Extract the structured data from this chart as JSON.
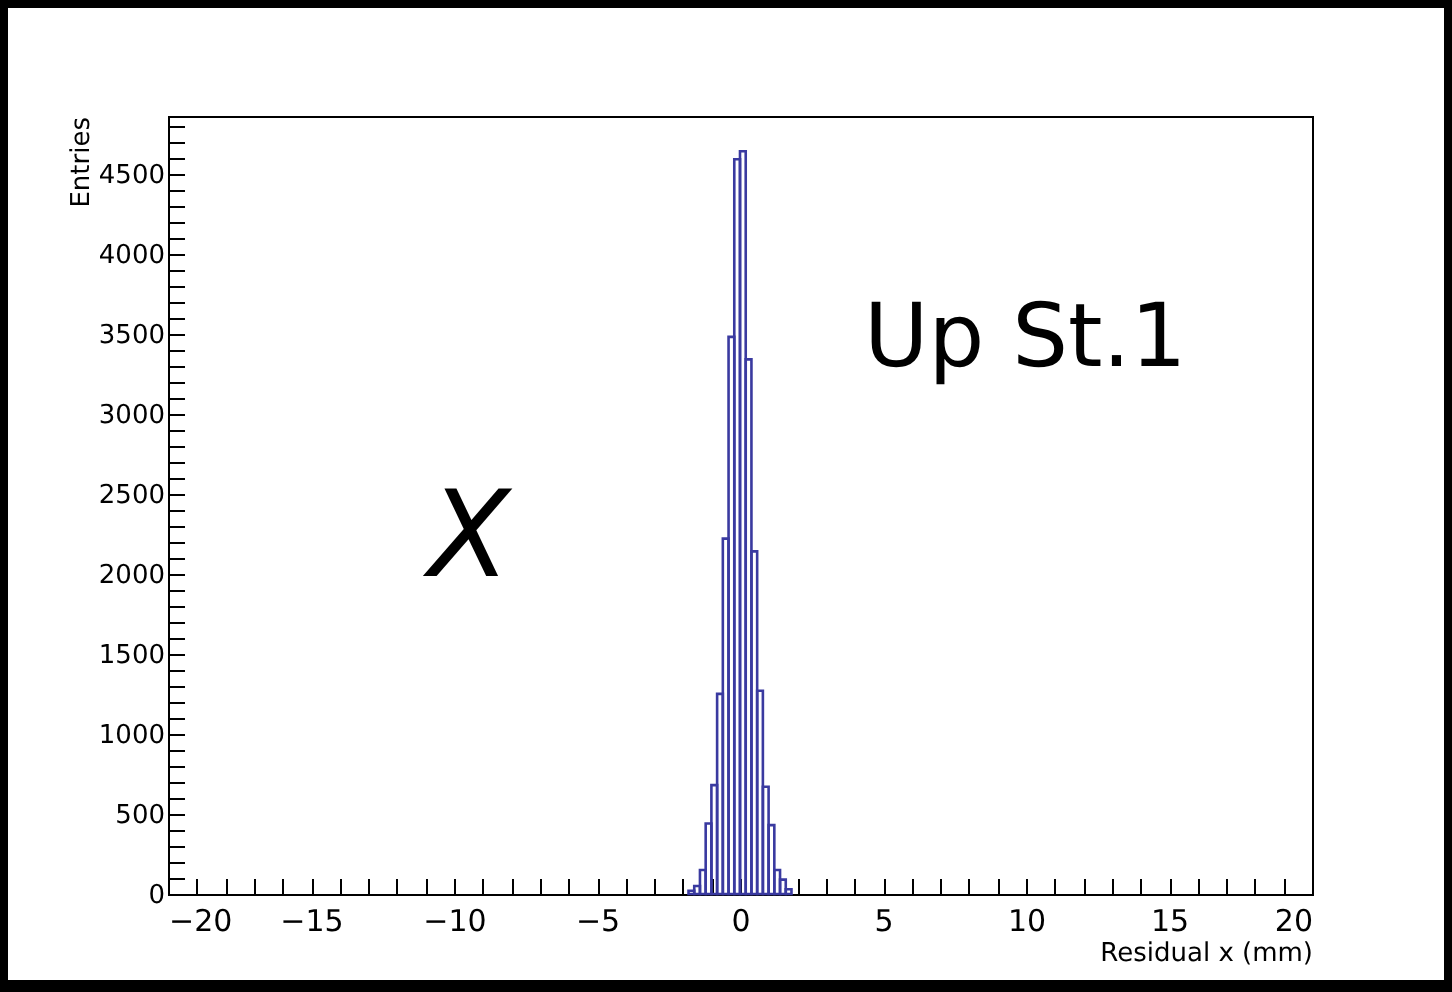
{
  "chart_data": {
    "type": "histogram",
    "xlabel": "Residual x (mm)",
    "ylabel": "Entries",
    "annotations": [
      "Up St.1",
      "X"
    ],
    "bins": [
      -1.8,
      -1.6,
      -1.4,
      -1.2,
      -1.0,
      -0.8,
      -0.6,
      -0.4,
      -0.2,
      0,
      0.2,
      0.4,
      0.6,
      0.8,
      1.0,
      1.2,
      1.4,
      1.6,
      1.8
    ],
    "values": [
      20,
      50,
      150,
      440,
      680,
      1250,
      2220,
      3480,
      4590,
      4640,
      3340,
      2140,
      1270,
      670,
      430,
      150,
      90,
      30
    ],
    "color": "#3a3aa0",
    "xlim": [
      -20,
      20
    ],
    "xticks": [
      -20,
      {
        "value": -19,
        "label": null
      },
      {
        "value": -18,
        "label": null
      },
      {
        "value": -17,
        "label": null
      },
      {
        "value": -16,
        "label": null
      },
      -15,
      {
        "value": -14,
        "label": null
      },
      {
        "value": -13,
        "label": null
      },
      {
        "value": -12,
        "label": null
      },
      {
        "value": -11,
        "label": null
      },
      -10,
      {
        "value": -9,
        "label": null
      },
      {
        "value": -8,
        "label": null
      },
      {
        "value": -7,
        "label": null
      },
      {
        "value": -6,
        "label": null
      },
      -5,
      {
        "value": -4,
        "label": null
      },
      {
        "value": -3,
        "label": null
      },
      {
        "value": -2,
        "label": null
      },
      {
        "value": -1,
        "label": null
      },
      0,
      {
        "value": 1,
        "label": null
      },
      {
        "value": 2,
        "label": null
      },
      {
        "value": 3,
        "label": null
      },
      {
        "value": 4,
        "label": null
      },
      5,
      {
        "value": 6,
        "label": null
      },
      {
        "value": 7,
        "label": null
      },
      {
        "value": 8,
        "label": null
      },
      {
        "value": 9,
        "label": null
      },
      10,
      {
        "value": 11,
        "label": null
      },
      {
        "value": 12,
        "label": null
      },
      {
        "value": 13,
        "label": null
      },
      {
        "value": 14,
        "label": null
      },
      15,
      {
        "value": 16,
        "label": null
      },
      {
        "value": 17,
        "label": null
      },
      {
        "value": 18,
        "label": null
      },
      {
        "value": 19,
        "label": null
      },
      20
    ],
    "ylim": [
      0,
      4860
    ],
    "yticks": [
      0,
      {
        "value": 100,
        "label": null
      },
      {
        "value": 200,
        "label": null
      },
      {
        "value": 300,
        "label": null
      },
      {
        "value": 400,
        "label": null
      },
      500,
      {
        "value": 600,
        "label": null
      },
      {
        "value": 700,
        "label": null
      },
      {
        "value": 800,
        "label": null
      },
      {
        "value": 900,
        "label": null
      },
      1000,
      {
        "value": 1100,
        "label": null
      },
      {
        "value": 1200,
        "label": null
      },
      {
        "value": 1300,
        "label": null
      },
      {
        "value": 1400,
        "label": null
      },
      1500,
      {
        "value": 1600,
        "label": null
      },
      {
        "value": 1700,
        "label": null
      },
      {
        "value": 1800,
        "label": null
      },
      {
        "value": 1900,
        "label": null
      },
      2000,
      {
        "value": 2100,
        "label": null
      },
      {
        "value": 2200,
        "label": null
      },
      {
        "value": 2300,
        "label": null
      },
      {
        "value": 2400,
        "label": null
      },
      2500,
      {
        "value": 2600,
        "label": null
      },
      {
        "value": 2700,
        "label": null
      },
      {
        "value": 2800,
        "label": null
      },
      {
        "value": 2900,
        "label": null
      },
      3000,
      {
        "value": 3100,
        "label": null
      },
      {
        "value": 3200,
        "label": null
      },
      {
        "value": 3300,
        "label": null
      },
      {
        "value": 3400,
        "label": null
      },
      3500,
      {
        "value": 3600,
        "label": null
      },
      {
        "value": 3700,
        "label": null
      },
      {
        "value": 3800,
        "label": null
      },
      {
        "value": 3900,
        "label": null
      },
      4000,
      {
        "value": 4100,
        "label": null
      },
      {
        "value": 4200,
        "label": null
      },
      {
        "value": 4300,
        "label": null
      },
      {
        "value": 4400,
        "label": null
      },
      4500,
      {
        "value": 4600,
        "label": null
      },
      {
        "value": 4700,
        "label": null
      },
      {
        "value": 4800,
        "label": null
      }
    ],
    "grid": false
  }
}
